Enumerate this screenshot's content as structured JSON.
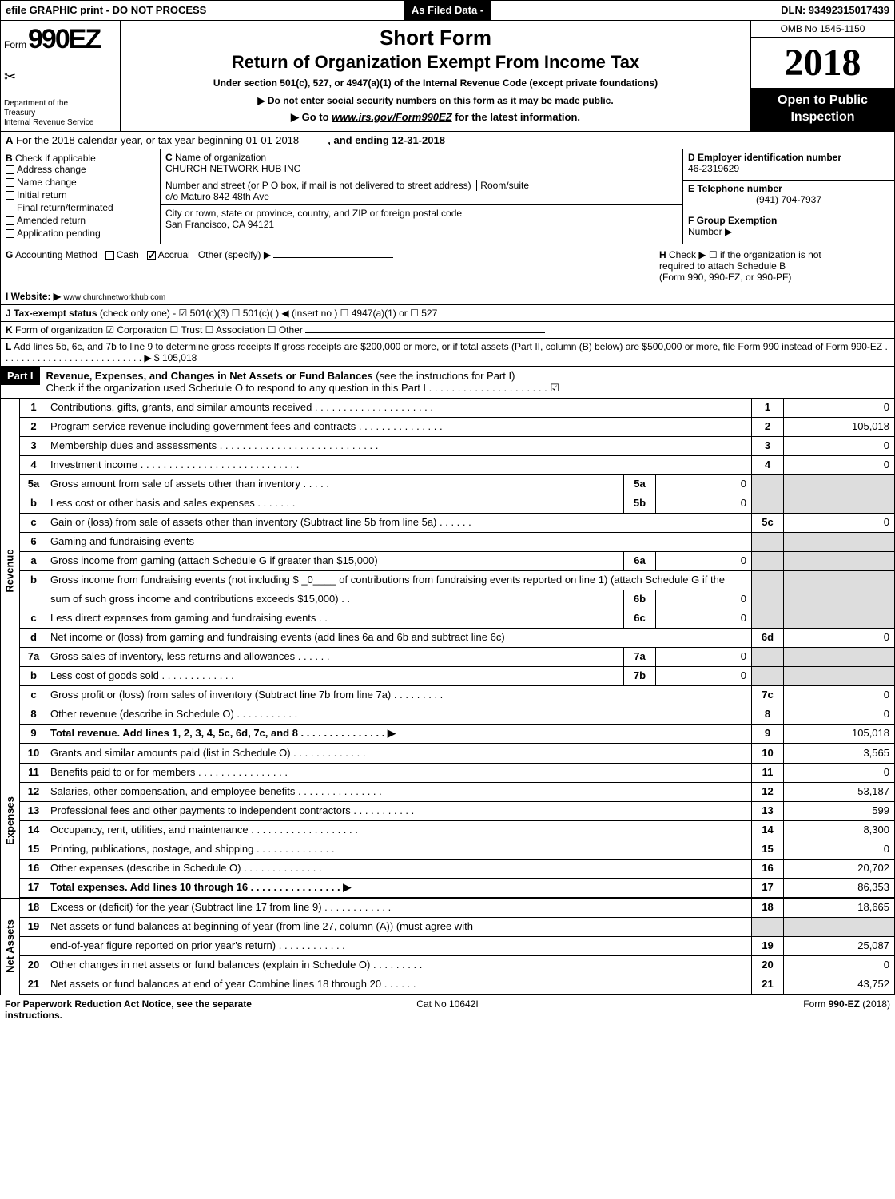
{
  "topbar": {
    "left": "efile GRAPHIC print - DO NOT PROCESS",
    "mid": "As Filed Data -",
    "right": "DLN: 93492315017439"
  },
  "header": {
    "form_word": "Form",
    "form_num": "990EZ",
    "dept1": "Department of the",
    "dept2": "Treasury",
    "dept3": "Internal Revenue Service",
    "short": "Short Form",
    "title": "Return of Organization Exempt From Income Tax",
    "under": "Under section 501(c), 527, or 4947(a)(1) of the Internal Revenue Code (except private foundations)",
    "arrow1": "▶ Do not enter social security numbers on this form as it may be made public.",
    "arrow2": "▶ Go to www.irs.gov/Form990EZ for the latest information.",
    "omb": "OMB No 1545-1150",
    "year": "2018",
    "open": "Open to Public Inspection"
  },
  "rowA": {
    "prefix": "A",
    "text": "For the 2018 calendar year, or tax year beginning 01-01-2018",
    "end": ", and ending 12-31-2018"
  },
  "sectionB": {
    "b_label": "B",
    "check_if": "Check if applicable",
    "items": [
      "Address change",
      "Name change",
      "Initial return",
      "Final return/terminated",
      "Amended return",
      "Application pending"
    ],
    "c_label": "C",
    "c_name_lbl": "Name of organization",
    "c_name": "CHURCH NETWORK HUB INC",
    "c_street_lbl": "Number and street (or P O box, if mail is not delivered to street address)",
    "c_room": "Room/suite",
    "c_street": "c/o Maturo 842 48th Ave",
    "c_city_lbl": "City or town, state or province, country, and ZIP or foreign postal code",
    "c_city": "San Francisco, CA 94121",
    "d_lbl": "D Employer identification number",
    "d_val": "46-2319629",
    "e_lbl": "E Telephone number",
    "e_val": "(941) 704-7937",
    "f_lbl": "F Group Exemption",
    "f_sub": "Number   ▶"
  },
  "rowG": {
    "g_lbl": "G",
    "g_text": "Accounting Method",
    "cash": "Cash",
    "accrual": "Accrual",
    "other": "Other (specify) ▶",
    "h_lbl": "H",
    "h_text1": "Check ▶  ☐  if the organization is not",
    "h_text2": "required to attach Schedule B",
    "h_text3": "(Form 990, 990-EZ, or 990-PF)"
  },
  "rowI": {
    "lbl": "I Website: ▶",
    "val": "www churchnetworkhub com"
  },
  "rowJ": {
    "lbl": "J Tax-exempt status",
    "text": "(check only one) - ☑ 501(c)(3) ☐ 501(c)( ) ◀ (insert no ) ☐ 4947(a)(1) or ☐ 527"
  },
  "rowK": {
    "lbl": "K",
    "text": "Form of organization   ☑ Corporation  ☐ Trust  ☐ Association  ☐ Other"
  },
  "rowL": {
    "lbl": "L",
    "text": "Add lines 5b, 6c, and 7b to line 9 to determine gross receipts If gross receipts are $200,000 or more, or if total assets (Part II, column (B) below) are $500,000 or more, file Form 990 instead of Form 990-EZ . . . . . . . . . . . . . . . . . . . . . . . . . . . ▶ $ 105,018"
  },
  "part1": {
    "label": "Part I",
    "title": "Revenue, Expenses, and Changes in Net Assets or Fund Balances",
    "paren": "(see the instructions for Part I)",
    "sub": "Check if the organization used Schedule O to respond to any question in this Part I . . . . . . . . . . . . . . . . . . . . . ☑"
  },
  "sections": {
    "revenue": "Revenue",
    "expenses": "Expenses",
    "net": "Net Assets"
  },
  "lines": [
    {
      "n": "1",
      "d": "Contributions, gifts, grants, and similar amounts received . . . . . . . . . . . . . . . . . . . . .",
      "rn": "1",
      "rv": "0"
    },
    {
      "n": "2",
      "d": "Program service revenue including government fees and contracts . . . . . . . . . . . . . . .",
      "rn": "2",
      "rv": "105,018"
    },
    {
      "n": "3",
      "d": "Membership dues and assessments . . . . . . . . . . . . . . . . . . . . . . . . . . . .",
      "rn": "3",
      "rv": "0"
    },
    {
      "n": "4",
      "d": "Investment income . . . . . . . . . . . . . . . . . . . . . . . . . . . .",
      "rn": "4",
      "rv": "0"
    },
    {
      "n": "5a",
      "d": "Gross amount from sale of assets other than inventory . . . . .",
      "in": "5a",
      "iv": "0",
      "shadeRight": true
    },
    {
      "n": "b",
      "d": "Less cost or other basis and sales expenses . . . . . . .",
      "in": "5b",
      "iv": "0",
      "shadeRight": true
    },
    {
      "n": "c",
      "d": "Gain or (loss) from sale of assets other than inventory (Subtract line 5b from line 5a) . . . . . .",
      "rn": "5c",
      "rv": "0"
    },
    {
      "n": "6",
      "d": "Gaming and fundraising events",
      "shadeRight": true,
      "noRightNum": true
    },
    {
      "n": "a",
      "d": "Gross income from gaming (attach Schedule G if greater than $15,000)",
      "in": "6a",
      "iv": "0",
      "shadeRight": true
    },
    {
      "n": "b",
      "d": "Gross income from fundraising events (not including $ _0____ of contributions from fundraising events reported on line 1) (attach Schedule G if the",
      "shadeRight": true,
      "noRightNum": true,
      "noInner": true
    },
    {
      "n": "",
      "d": "sum of such gross income and contributions exceeds $15,000)   . .",
      "in": "6b",
      "iv": "0",
      "shadeRight": true
    },
    {
      "n": "c",
      "d": "Less direct expenses from gaming and fundraising events     . .",
      "in": "6c",
      "iv": "0",
      "shadeRight": true
    },
    {
      "n": "d",
      "d": "Net income or (loss) from gaming and fundraising events (add lines 6a and 6b and subtract line 6c)",
      "rn": "6d",
      "rv": "0"
    },
    {
      "n": "7a",
      "d": "Gross sales of inventory, less returns and allowances . . . . . .",
      "in": "7a",
      "iv": "0",
      "shadeRight": true
    },
    {
      "n": "b",
      "d": "Less cost of goods sold           . . . . . . . . . . . . .",
      "in": "7b",
      "iv": "0",
      "shadeRight": true
    },
    {
      "n": "c",
      "d": "Gross profit or (loss) from sales of inventory (Subtract line 7b from line 7a) . . . . . . . . .",
      "rn": "7c",
      "rv": "0"
    },
    {
      "n": "8",
      "d": "Other revenue (describe in Schedule O)                  . . . . . . . . . . .",
      "rn": "8",
      "rv": "0"
    },
    {
      "n": "9",
      "d": "Total revenue. Add lines 1, 2, 3, 4, 5c, 6d, 7c, and 8 . . . . . . . . . . . . . . . ▶",
      "rn": "9",
      "rv": "105,018",
      "bold": true
    }
  ],
  "exp_lines": [
    {
      "n": "10",
      "d": "Grants and similar amounts paid (list in Schedule O)        . . . . . . . . . . . . .",
      "rn": "10",
      "rv": "3,565"
    },
    {
      "n": "11",
      "d": "Benefits paid to or for members              . . . . . . . . . . . . . . . .",
      "rn": "11",
      "rv": "0"
    },
    {
      "n": "12",
      "d": "Salaries, other compensation, and employee benefits . . . . . . . . . . . . . . .",
      "rn": "12",
      "rv": "53,187"
    },
    {
      "n": "13",
      "d": "Professional fees and other payments to independent contractors . . . . . . . . . . .",
      "rn": "13",
      "rv": "599"
    },
    {
      "n": "14",
      "d": "Occupancy, rent, utilities, and maintenance . . . . . . . . . . . . . . . . . . .",
      "rn": "14",
      "rv": "8,300"
    },
    {
      "n": "15",
      "d": "Printing, publications, postage, and shipping        . . . . . . . . . . . . . .",
      "rn": "15",
      "rv": "0"
    },
    {
      "n": "16",
      "d": "Other expenses (describe in Schedule O)          . . . . . . . . . . . . . .",
      "rn": "16",
      "rv": "20,702"
    },
    {
      "n": "17",
      "d": "Total expenses. Add lines 10 through 16       . . . . . . . . . . . . . . . . ▶",
      "rn": "17",
      "rv": "86,353",
      "bold": true
    }
  ],
  "net_lines": [
    {
      "n": "18",
      "d": "Excess or (deficit) for the year (Subtract line 17 from line 9)    . . . . . . . . . . . .",
      "rn": "18",
      "rv": "18,665"
    },
    {
      "n": "19",
      "d": "Net assets or fund balances at beginning of year (from line 27, column (A)) (must agree with",
      "noRight": true
    },
    {
      "n": "",
      "d": "end-of-year figure reported on prior year's return)        . . . . . . . . . . . .",
      "rn": "19",
      "rv": "25,087"
    },
    {
      "n": "20",
      "d": "Other changes in net assets or fund balances (explain in Schedule O)   . . . . . . . . .",
      "rn": "20",
      "rv": "0"
    },
    {
      "n": "21",
      "d": "Net assets or fund balances at end of year Combine lines 18 through 20     . . . . . .",
      "rn": "21",
      "rv": "43,752"
    }
  ],
  "bottom": {
    "l": "For Paperwork Reduction Act Notice, see the separate instructions.",
    "m": "Cat No 10642I",
    "r": "Form 990-EZ (2018)"
  }
}
